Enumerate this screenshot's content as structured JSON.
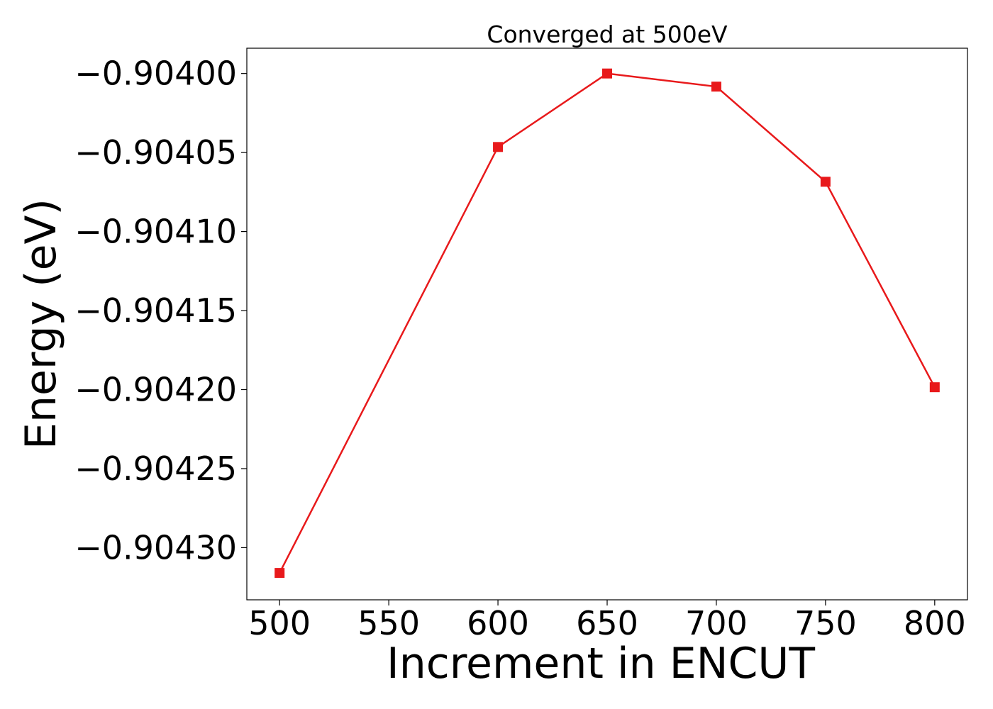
{
  "chart_data": {
    "type": "line",
    "title": "Converged at 500eV",
    "xlabel": "Increment in ENCUT",
    "ylabel": "Energy (eV)",
    "xlim": [
      485,
      815
    ],
    "ylim": [
      -0.904333,
      -0.903984
    ],
    "x_ticks": [
      500,
      550,
      600,
      650,
      700,
      750,
      800
    ],
    "x_tick_labels": [
      "500",
      "550",
      "600",
      "650",
      "700",
      "750",
      "800"
    ],
    "y_ticks": [
      -0.9043,
      -0.90425,
      -0.9042,
      -0.90415,
      -0.9041,
      -0.90405,
      -0.904
    ],
    "y_tick_labels": [
      "−0.90430",
      "−0.90425",
      "−0.90420",
      "−0.90415",
      "−0.90410",
      "−0.90405",
      "−0.90400"
    ],
    "grid": false,
    "series": [
      {
        "x": [
          500,
          600,
          650,
          700,
          750,
          800
        ],
        "y": [
          -0.904316,
          -0.9040465,
          -0.904,
          -0.9040083,
          -0.9040685,
          -0.9041985
        ],
        "color": "#e8191b",
        "marker": "square"
      }
    ]
  }
}
